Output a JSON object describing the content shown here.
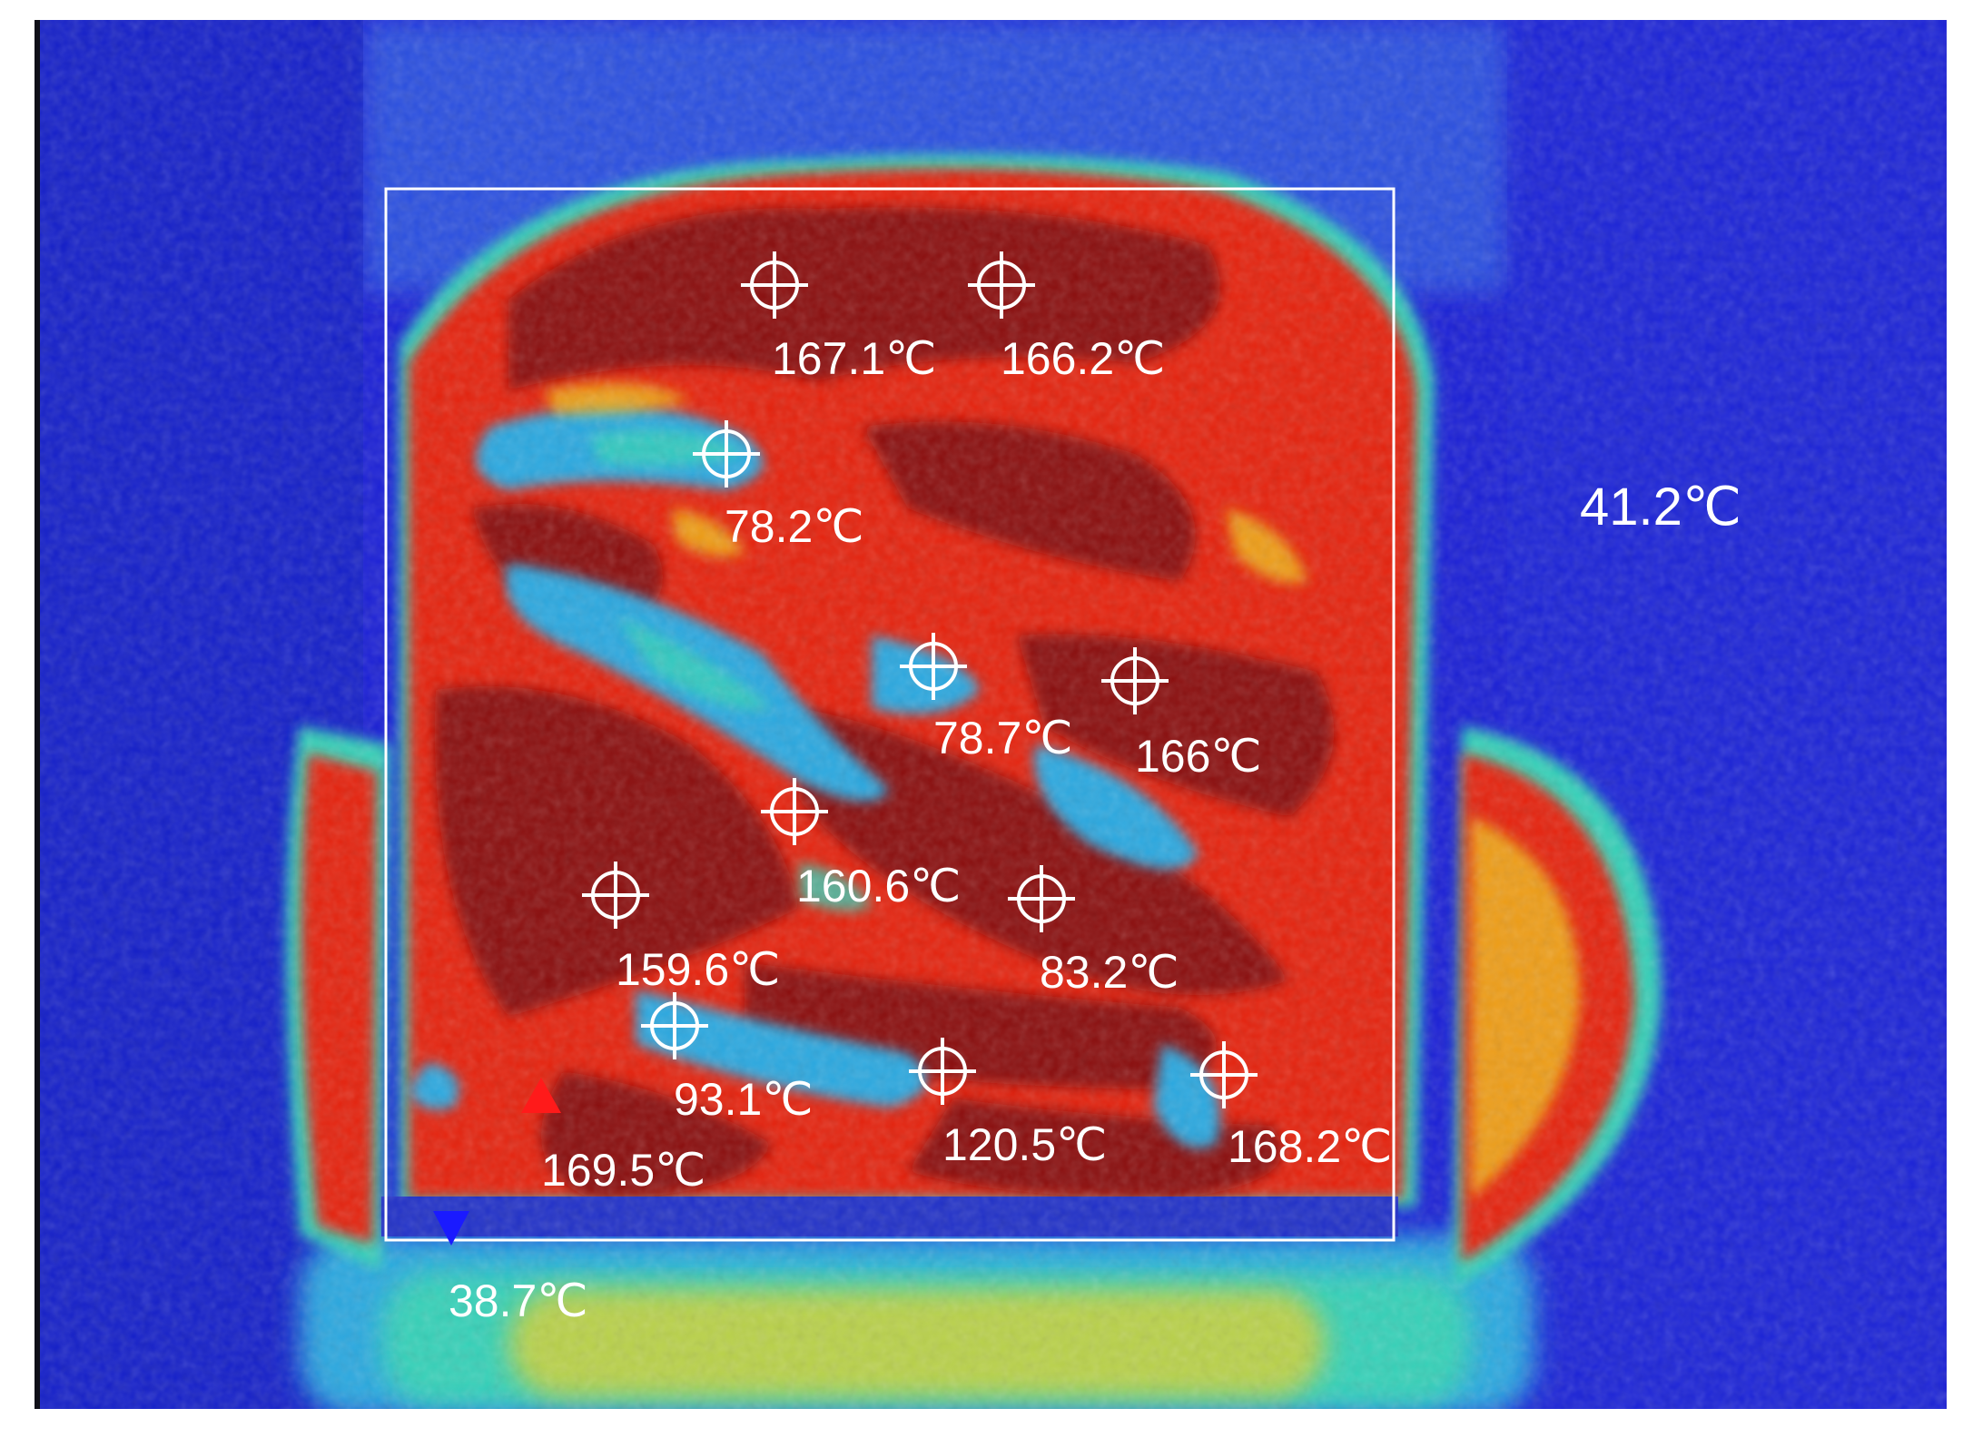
{
  "thermal_image": {
    "palette": {
      "cold": "#1a1fd6",
      "cool": "#2aa8e0",
      "mid": "#35d1b8",
      "warm": "#f2d21c",
      "hot": "#e5200e",
      "hottest": "#8a0e0e",
      "frame": "#ffffff",
      "max_marker": "#ff1a1a",
      "min_marker": "#1a1aff"
    },
    "ambient_label": "41.2℃",
    "max_label": "169.5℃",
    "min_label": "38.7℃",
    "measurement_points": [
      {
        "label": "167.1℃"
      },
      {
        "label": "166.2℃"
      },
      {
        "label": "78.2℃"
      },
      {
        "label": "78.7℃"
      },
      {
        "label": "166℃"
      },
      {
        "label": "160.6℃"
      },
      {
        "label": "159.6℃"
      },
      {
        "label": "83.2℃"
      },
      {
        "label": "93.1℃"
      },
      {
        "label": "120.5℃"
      },
      {
        "label": "168.2℃"
      }
    ]
  }
}
